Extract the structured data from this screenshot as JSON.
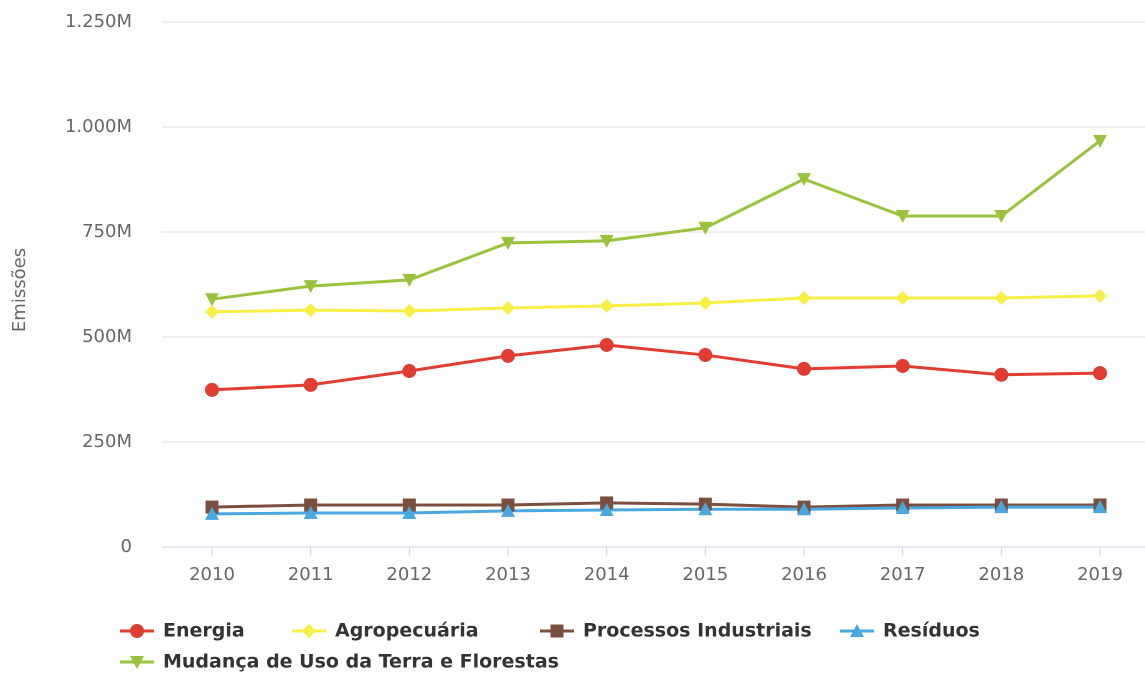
{
  "chart_data": {
    "type": "line",
    "y_label": "Emissões",
    "categories": [
      "2010",
      "2011",
      "2012",
      "2013",
      "2014",
      "2015",
      "2016",
      "2017",
      "2018",
      "2019"
    ],
    "series": [
      {
        "name": "Energia",
        "color": "#e03c31",
        "marker": "circle",
        "values": [
          374000000,
          386000000,
          419000000,
          455000000,
          481000000,
          457000000,
          424000000,
          431000000,
          410000000,
          414000000
        ]
      },
      {
        "name": "Agropecuária",
        "color": "#f7ef45",
        "marker": "diamond",
        "values": [
          560000000,
          564000000,
          562000000,
          569000000,
          574000000,
          581000000,
          593000000,
          593000000,
          593000000,
          598000000
        ]
      },
      {
        "name": "Processos Industriais",
        "color": "#7b4f3f",
        "marker": "square",
        "values": [
          95000000,
          100000000,
          100000000,
          100000000,
          105000000,
          102000000,
          95000000,
          100000000,
          100000000,
          100000000
        ]
      },
      {
        "name": "Resíduos",
        "color": "#4aa8e0",
        "marker": "triangle",
        "values": [
          79000000,
          81000000,
          81000000,
          86000000,
          88000000,
          90000000,
          90000000,
          93000000,
          95000000,
          95000000
        ]
      },
      {
        "name": "Mudança de Uso da Terra e Florestas",
        "color": "#9ac23c",
        "marker": "triangle-down",
        "values": [
          590000000,
          621000000,
          636000000,
          724000000,
          729000000,
          760000000,
          876000000,
          788000000,
          788000000,
          967000000
        ]
      }
    ],
    "ylim": [
      0,
      1250000000
    ],
    "yticks": [
      0,
      {
        "value": 250000000,
        "label": "250M"
      },
      {
        "value": 500000000,
        "label": "500M"
      },
      {
        "value": 750000000,
        "label": "750M"
      },
      {
        "value": 1000000000,
        "label": "1.000M"
      },
      {
        "value": 1250000000,
        "label": "1.250M"
      }
    ],
    "grid": true
  }
}
